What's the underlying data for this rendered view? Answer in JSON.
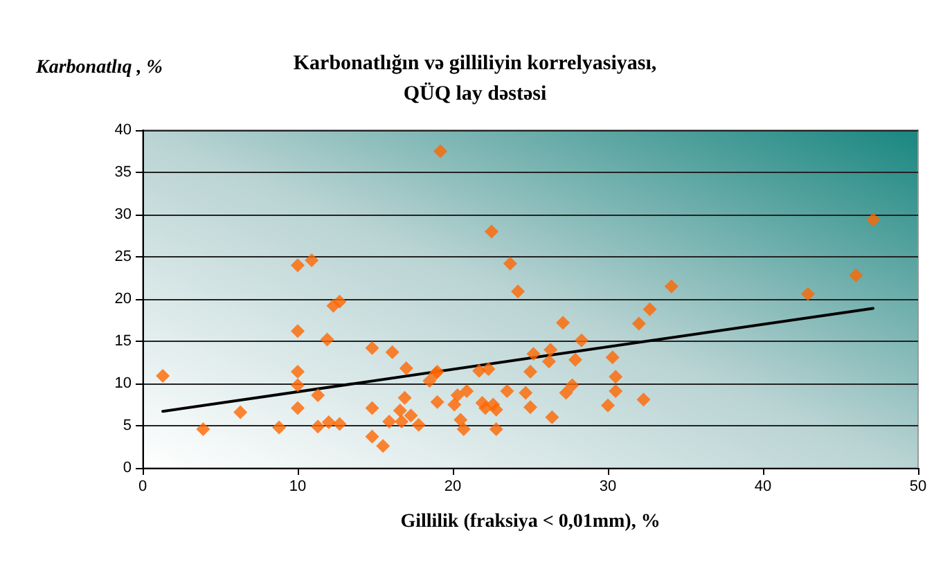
{
  "chart_data": {
    "type": "scatter",
    "title": "Karbonatlığın və gilliliyin korrelyasiyası,\nQÜQ lay dəstəsi",
    "ylabel": "Karbonatlıq , %",
    "xlabel": "Gillilik (fraksiya < 0,01mm), %",
    "xlim": [
      0,
      50
    ],
    "xticks": [
      0,
      10,
      20,
      30,
      40,
      50
    ],
    "ylim": [
      0,
      40
    ],
    "yticks": [
      0,
      5,
      10,
      15,
      20,
      25,
      30,
      35,
      40
    ],
    "grid": "y",
    "marker": "diamond",
    "series": [
      {
        "color": "#ff6600",
        "x": [
          1.3,
          3.9,
          6.3,
          8.8,
          10.0,
          10.9,
          10.0,
          10.0,
          10.0,
          10.0,
          11.3,
          11.3,
          11.9,
          12.0,
          12.3,
          12.7,
          12.7,
          14.8,
          14.8,
          14.8,
          15.5,
          15.9,
          16.1,
          16.6,
          16.7,
          16.9,
          17.0,
          17.3,
          17.8,
          18.5,
          18.9,
          19.0,
          19.0,
          19.2,
          20.1,
          20.3,
          20.5,
          20.7,
          20.9,
          21.7,
          21.9,
          22.1,
          22.3,
          22.5,
          22.6,
          22.8,
          22.8,
          23.5,
          23.7,
          24.2,
          24.7,
          25.0,
          25.2,
          25.0,
          26.2,
          26.3,
          26.4,
          27.1,
          27.3,
          27.7,
          28.3,
          27.9,
          30.0,
          30.3,
          30.5,
          30.5,
          32.0,
          32.3,
          32.7,
          34.1,
          42.9,
          46.0,
          47.1
        ],
        "values": [
          10.9,
          4.6,
          6.6,
          4.8,
          24.0,
          24.6,
          16.2,
          11.4,
          9.8,
          7.1,
          8.6,
          4.9,
          15.2,
          5.4,
          19.2,
          19.7,
          5.2,
          7.1,
          3.7,
          14.2,
          2.6,
          5.5,
          13.7,
          6.8,
          5.5,
          8.3,
          11.8,
          6.2,
          5.1,
          10.3,
          11.2,
          11.4,
          7.8,
          37.5,
          7.5,
          8.6,
          5.7,
          4.6,
          9.1,
          11.5,
          7.7,
          7.1,
          11.7,
          28.0,
          7.5,
          4.6,
          6.9,
          9.1,
          24.2,
          20.9,
          8.9,
          11.4,
          13.5,
          7.2,
          12.6,
          14.0,
          6.0,
          17.2,
          8.9,
          9.8,
          15.1,
          12.8,
          7.4,
          13.1,
          10.8,
          9.1,
          17.1,
          8.1,
          18.8,
          21.5,
          20.6,
          22.8,
          29.4
        ]
      },
      {
        "type": "line",
        "color": "#000000",
        "marker": "none",
        "x": [
          1.3,
          47.1
        ],
        "values": [
          6.7,
          18.9
        ]
      }
    ]
  }
}
